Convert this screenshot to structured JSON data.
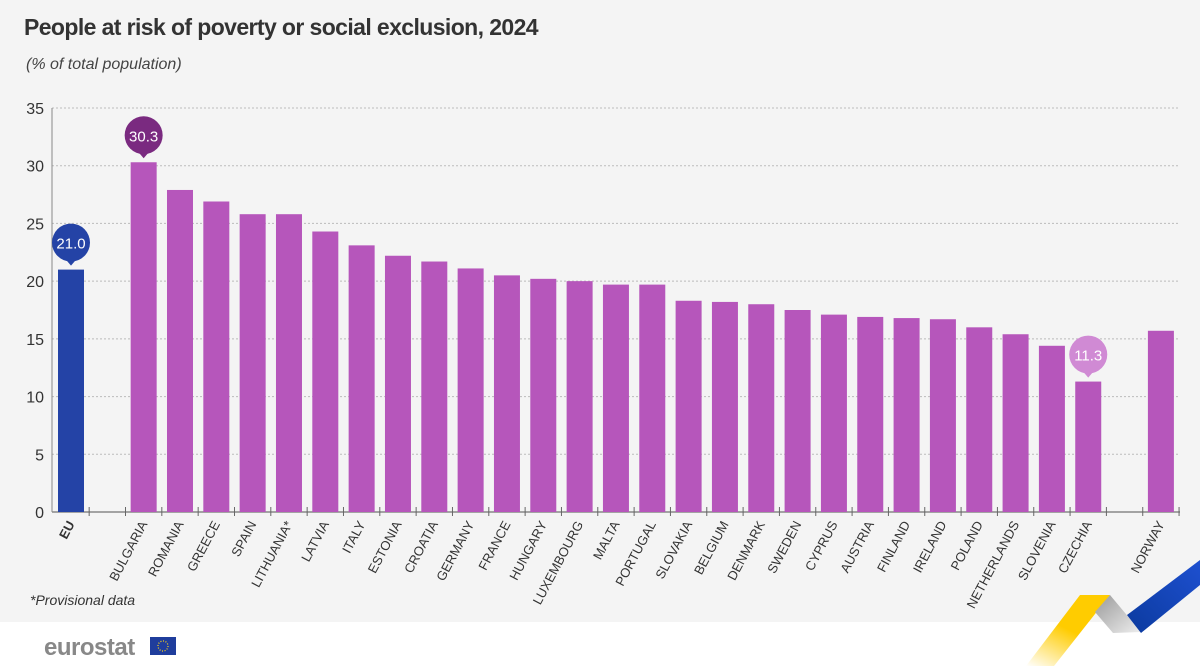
{
  "header": {
    "title": "People at risk of poverty or social exclusion, 2024",
    "subtitle": "(% of total population)"
  },
  "footnote": "*Provisional data",
  "logo": {
    "text": "eurostat",
    "icon": "eu-flag-icon"
  },
  "colors": {
    "eu": "#2443a6",
    "country": "#b656bb",
    "highlight_max": "#7a2a80",
    "highlight_min": "#d08ad4",
    "background": "#f4f4f4"
  },
  "chart_data": {
    "type": "bar",
    "title": "People at risk of poverty or social exclusion, 2024",
    "ylabel": "(% of total population)",
    "ylim": [
      0,
      35
    ],
    "yticks": [
      0,
      5,
      10,
      15,
      20,
      25,
      30,
      35
    ],
    "grid": true,
    "categories": [
      "EU",
      "BULGARIA",
      "ROMANIA",
      "GREECE",
      "SPAIN",
      "LITHUANIA*",
      "LATVIA",
      "ITALY",
      "ESTONIA",
      "CROATIA",
      "GERMANY",
      "FRANCE",
      "HUNGARY",
      "LUXEMBOURG",
      "MALTA",
      "PORTUGAL",
      "SLOVAKIA",
      "BELGIUM",
      "DENMARK",
      "SWEDEN",
      "CYPRUS",
      "AUSTRIA",
      "FINLAND",
      "IRELAND",
      "POLAND",
      "NETHERLANDS",
      "SLOVENIA",
      "CZECHIA",
      "NORWAY"
    ],
    "values": [
      21.0,
      30.3,
      27.9,
      26.9,
      25.8,
      25.8,
      24.3,
      23.1,
      22.2,
      21.7,
      21.1,
      20.5,
      20.2,
      20.0,
      19.7,
      19.7,
      18.3,
      18.2,
      18.0,
      17.5,
      17.1,
      16.9,
      16.8,
      16.7,
      16.0,
      15.4,
      14.4,
      11.3,
      15.7
    ],
    "data_labels": [
      {
        "category": "EU",
        "text": "21.0"
      },
      {
        "category": "BULGARIA",
        "text": "30.3"
      },
      {
        "category": "CZECHIA",
        "text": "11.3"
      }
    ]
  }
}
